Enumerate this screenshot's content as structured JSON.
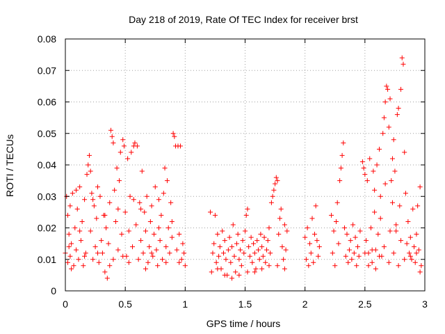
{
  "chart_data": {
    "type": "scatter",
    "title": "Day 218 of 2019, Rate Of TEC Index for receiver brst",
    "xlabel": "GPS time / hours",
    "ylabel": "ROTI / TECUs",
    "xlim": [
      0,
      3
    ],
    "ylim": [
      0,
      0.08
    ],
    "xticks": [
      0,
      0.5,
      1,
      1.5,
      2,
      2.5,
      3
    ],
    "xtick_labels": [
      "0",
      "0.5",
      "1",
      "1.5",
      "2",
      "2.5",
      "3"
    ],
    "yticks": [
      0,
      0.01,
      0.02,
      0.03,
      0.04,
      0.05,
      0.06,
      0.07,
      0.08
    ],
    "ytick_labels": [
      "0",
      "0.01",
      "0.02",
      "0.03",
      "0.04",
      "0.05",
      "0.06",
      "0.07",
      "0.08"
    ],
    "grid": true,
    "marker": "+",
    "marker_color": "#ff0000",
    "series": [
      {
        "name": "ROTI",
        "points": [
          [
            0.0,
            0.012
          ],
          [
            0.01,
            0.03
          ],
          [
            0.02,
            0.024
          ],
          [
            0.02,
            0.009
          ],
          [
            0.03,
            0.018
          ],
          [
            0.04,
            0.027
          ],
          [
            0.04,
            0.011
          ],
          [
            0.05,
            0.015
          ],
          [
            0.06,
            0.031
          ],
          [
            0.07,
            0.008
          ],
          [
            0.08,
            0.02
          ],
          [
            0.09,
            0.013
          ],
          [
            0.1,
            0.026
          ],
          [
            0.11,
            0.01
          ],
          [
            0.12,
            0.033
          ],
          [
            0.13,
            0.016
          ],
          [
            0.14,
            0.022
          ],
          [
            0.15,
            0.008
          ],
          [
            0.16,
            0.029
          ],
          [
            0.17,
            0.012
          ],
          [
            0.18,
            0.037
          ],
          [
            0.19,
            0.04
          ],
          [
            0.2,
            0.043
          ],
          [
            0.21,
            0.038
          ],
          [
            0.21,
            0.019
          ],
          [
            0.22,
            0.031
          ],
          [
            0.23,
            0.01
          ],
          [
            0.24,
            0.027
          ],
          [
            0.25,
            0.014
          ],
          [
            0.26,
            0.023
          ],
          [
            0.27,
            0.033
          ],
          [
            0.28,
            0.009
          ],
          [
            0.29,
            0.03
          ],
          [
            0.3,
            0.016
          ],
          [
            0.31,
            0.012
          ],
          [
            0.32,
            0.024
          ],
          [
            0.33,
            0.006
          ],
          [
            0.34,
            0.02
          ],
          [
            0.35,
            0.004
          ],
          [
            0.36,
            0.015
          ],
          [
            0.37,
            0.028
          ],
          [
            0.38,
            0.051
          ],
          [
            0.39,
            0.049
          ],
          [
            0.4,
            0.047
          ],
          [
            0.4,
            0.01
          ],
          [
            0.41,
            0.032
          ],
          [
            0.42,
            0.022
          ],
          [
            0.43,
            0.039
          ],
          [
            0.44,
            0.013
          ],
          [
            0.45,
            0.035
          ],
          [
            0.46,
            0.044
          ],
          [
            0.47,
            0.018
          ],
          [
            0.48,
            0.048
          ],
          [
            0.49,
            0.046
          ],
          [
            0.5,
            0.025
          ],
          [
            0.51,
            0.011
          ],
          [
            0.52,
            0.042
          ],
          [
            0.53,
            0.019
          ],
          [
            0.54,
            0.03
          ],
          [
            0.55,
            0.044
          ],
          [
            0.56,
            0.014
          ],
          [
            0.57,
            0.046
          ],
          [
            0.58,
            0.047
          ],
          [
            0.59,
            0.021
          ],
          [
            0.6,
            0.046
          ],
          [
            0.61,
            0.01
          ],
          [
            0.62,
            0.028
          ],
          [
            0.63,
            0.016
          ],
          [
            0.64,
            0.038
          ],
          [
            0.65,
            0.012
          ],
          [
            0.66,
            0.025
          ],
          [
            0.67,
            0.019
          ],
          [
            0.68,
            0.03
          ],
          [
            0.69,
            0.009
          ],
          [
            0.7,
            0.014
          ],
          [
            0.71,
            0.022
          ],
          [
            0.72,
            0.027
          ],
          [
            0.73,
            0.011
          ],
          [
            0.74,
            0.018
          ],
          [
            0.75,
            0.033
          ],
          [
            0.76,
            0.013
          ],
          [
            0.77,
            0.008
          ],
          [
            0.78,
            0.029
          ],
          [
            0.79,
            0.016
          ],
          [
            0.8,
            0.024
          ],
          [
            0.81,
            0.01
          ],
          [
            0.82,
            0.031
          ],
          [
            0.83,
            0.039
          ],
          [
            0.84,
            0.014
          ],
          [
            0.85,
            0.035
          ],
          [
            0.86,
            0.02
          ],
          [
            0.87,
            0.012
          ],
          [
            0.88,
            0.028
          ],
          [
            0.89,
            0.017
          ],
          [
            0.9,
            0.05
          ],
          [
            0.91,
            0.049
          ],
          [
            0.92,
            0.046
          ],
          [
            0.93,
            0.013
          ],
          [
            0.94,
            0.046
          ],
          [
            0.95,
            0.018
          ],
          [
            0.96,
            0.046
          ],
          [
            0.97,
            0.01
          ],
          [
            0.98,
            0.015
          ],
          [
            0.99,
            0.012
          ],
          [
            1.0,
            0.008
          ],
          [
            0.03,
            0.014
          ],
          [
            0.05,
            0.007
          ],
          [
            0.09,
            0.032
          ],
          [
            0.12,
            0.019
          ],
          [
            0.16,
            0.011
          ],
          [
            0.23,
            0.029
          ],
          [
            0.27,
            0.012
          ],
          [
            0.33,
            0.024
          ],
          [
            0.37,
            0.008
          ],
          [
            0.44,
            0.026
          ],
          [
            0.48,
            0.011
          ],
          [
            0.53,
            0.009
          ],
          [
            0.57,
            0.029
          ],
          [
            0.63,
            0.026
          ],
          [
            0.67,
            0.007
          ],
          [
            0.72,
            0.012
          ],
          [
            0.78,
            0.02
          ],
          [
            0.84,
            0.009
          ],
          [
            0.89,
            0.022
          ],
          [
            0.95,
            0.009
          ],
          [
            1.21,
            0.025
          ],
          [
            1.22,
            0.006
          ],
          [
            1.23,
            0.012
          ],
          [
            1.24,
            0.015
          ],
          [
            1.25,
            0.024
          ],
          [
            1.26,
            0.009
          ],
          [
            1.27,
            0.018
          ],
          [
            1.28,
            0.011
          ],
          [
            1.29,
            0.014
          ],
          [
            1.3,
            0.007
          ],
          [
            1.31,
            0.019
          ],
          [
            1.32,
            0.012
          ],
          [
            1.33,
            0.016
          ],
          [
            1.34,
            0.01
          ],
          [
            1.35,
            0.005
          ],
          [
            1.36,
            0.013
          ],
          [
            1.37,
            0.017
          ],
          [
            1.38,
            0.009
          ],
          [
            1.39,
            0.014
          ],
          [
            1.4,
            0.021
          ],
          [
            1.41,
            0.011
          ],
          [
            1.42,
            0.006
          ],
          [
            1.43,
            0.015
          ],
          [
            1.44,
            0.018
          ],
          [
            1.45,
            0.01
          ],
          [
            1.46,
            0.013
          ],
          [
            1.47,
            0.008
          ],
          [
            1.48,
            0.016
          ],
          [
            1.49,
            0.012
          ],
          [
            1.5,
            0.019
          ],
          [
            1.51,
            0.024
          ],
          [
            1.52,
            0.026
          ],
          [
            1.53,
            0.014
          ],
          [
            1.54,
            0.011
          ],
          [
            1.55,
            0.017
          ],
          [
            1.56,
            0.009
          ],
          [
            1.57,
            0.015
          ],
          [
            1.58,
            0.012
          ],
          [
            1.59,
            0.007
          ],
          [
            1.6,
            0.016
          ],
          [
            1.61,
            0.013
          ],
          [
            1.62,
            0.01
          ],
          [
            1.63,
            0.018
          ],
          [
            1.64,
            0.014
          ],
          [
            1.65,
            0.011
          ],
          [
            1.66,
            0.017
          ],
          [
            1.67,
            0.009
          ],
          [
            1.68,
            0.013
          ],
          [
            1.69,
            0.016
          ],
          [
            1.7,
            0.02
          ],
          [
            1.71,
            0.012
          ],
          [
            1.72,
            0.028
          ],
          [
            1.73,
            0.03
          ],
          [
            1.74,
            0.032
          ],
          [
            1.75,
            0.034
          ],
          [
            1.76,
            0.036
          ],
          [
            1.77,
            0.035
          ],
          [
            1.78,
            0.018
          ],
          [
            1.79,
            0.023
          ],
          [
            1.8,
            0.026
          ],
          [
            1.81,
            0.014
          ],
          [
            1.82,
            0.01
          ],
          [
            1.83,
            0.021
          ],
          [
            1.84,
            0.013
          ],
          [
            1.85,
            0.019
          ],
          [
            1.27,
            0.007
          ],
          [
            1.33,
            0.005
          ],
          [
            1.39,
            0.004
          ],
          [
            1.45,
            0.005
          ],
          [
            1.52,
            0.006
          ],
          [
            1.58,
            0.006
          ],
          [
            1.64,
            0.007
          ],
          [
            1.7,
            0.008
          ],
          [
            1.77,
            0.008
          ],
          [
            1.83,
            0.007
          ],
          [
            2.0,
            0.017
          ],
          [
            2.01,
            0.01
          ],
          [
            2.02,
            0.02
          ],
          [
            2.03,
            0.008
          ],
          [
            2.04,
            0.015
          ],
          [
            2.05,
            0.012
          ],
          [
            2.06,
            0.023
          ],
          [
            2.07,
            0.009
          ],
          [
            2.08,
            0.018
          ],
          [
            2.09,
            0.027
          ],
          [
            2.1,
            0.016
          ],
          [
            2.11,
            0.011
          ],
          [
            2.12,
            0.014
          ],
          [
            2.22,
            0.024
          ],
          [
            2.23,
            0.012
          ],
          [
            2.24,
            0.019
          ],
          [
            2.25,
            0.008
          ],
          [
            2.26,
            0.022
          ],
          [
            2.27,
            0.028
          ],
          [
            2.28,
            0.015
          ],
          [
            2.29,
            0.035
          ],
          [
            2.3,
            0.039
          ],
          [
            2.31,
            0.043
          ],
          [
            2.32,
            0.047
          ],
          [
            2.33,
            0.02
          ],
          [
            2.34,
            0.011
          ],
          [
            2.35,
            0.018
          ],
          [
            2.36,
            0.009
          ],
          [
            2.37,
            0.013
          ],
          [
            2.38,
            0.016
          ],
          [
            2.39,
            0.01
          ],
          [
            2.4,
            0.021
          ],
          [
            2.41,
            0.012
          ],
          [
            2.42,
            0.017
          ],
          [
            2.43,
            0.008
          ],
          [
            2.44,
            0.014
          ],
          [
            2.45,
            0.011
          ],
          [
            2.46,
            0.019
          ],
          [
            2.48,
            0.041
          ],
          [
            2.49,
            0.039
          ],
          [
            2.5,
            0.037
          ],
          [
            2.51,
            0.016
          ],
          [
            2.52,
            0.035
          ],
          [
            2.53,
            0.012
          ],
          [
            2.54,
            0.042
          ],
          [
            2.55,
            0.02
          ],
          [
            2.56,
            0.009
          ],
          [
            2.57,
            0.038
          ],
          [
            2.58,
            0.025
          ],
          [
            2.59,
            0.013
          ],
          [
            2.6,
            0.04
          ],
          [
            2.61,
            0.018
          ],
          [
            2.62,
            0.045
          ],
          [
            2.63,
            0.03
          ],
          [
            2.64,
            0.011
          ],
          [
            2.65,
            0.05
          ],
          [
            2.66,
            0.055
          ],
          [
            2.67,
            0.06
          ],
          [
            2.68,
            0.065
          ],
          [
            2.69,
            0.064
          ],
          [
            2.7,
            0.052
          ],
          [
            2.71,
            0.061
          ],
          [
            2.72,
            0.035
          ],
          [
            2.73,
            0.042
          ],
          [
            2.74,
            0.048
          ],
          [
            2.75,
            0.038
          ],
          [
            2.76,
            0.019
          ],
          [
            2.77,
            0.056
          ],
          [
            2.78,
            0.058
          ],
          [
            2.79,
            0.027
          ],
          [
            2.8,
            0.064
          ],
          [
            2.81,
            0.074
          ],
          [
            2.82,
            0.072
          ],
          [
            2.83,
            0.044
          ],
          [
            2.84,
            0.031
          ],
          [
            2.85,
            0.015
          ],
          [
            2.86,
            0.022
          ],
          [
            2.87,
            0.012
          ],
          [
            2.88,
            0.017
          ],
          [
            2.89,
            0.01
          ],
          [
            2.9,
            0.026
          ],
          [
            2.91,
            0.014
          ],
          [
            2.92,
            0.009
          ],
          [
            2.93,
            0.018
          ],
          [
            2.94,
            0.027
          ],
          [
            2.95,
            0.013
          ],
          [
            2.96,
            0.033
          ],
          [
            2.97,
            0.008
          ],
          [
            2.5,
            0.012
          ],
          [
            2.53,
            0.008
          ],
          [
            2.56,
            0.013
          ],
          [
            2.59,
            0.007
          ],
          [
            2.62,
            0.011
          ],
          [
            2.66,
            0.014
          ],
          [
            2.7,
            0.009
          ],
          [
            2.74,
            0.012
          ],
          [
            2.78,
            0.008
          ],
          [
            2.83,
            0.01
          ],
          [
            2.88,
            0.011
          ],
          [
            2.93,
            0.012
          ],
          [
            2.96,
            0.006
          ],
          [
            2.71,
            0.019
          ],
          [
            2.76,
            0.021
          ],
          [
            2.8,
            0.016
          ],
          [
            2.67,
            0.034
          ],
          [
            2.73,
            0.028
          ],
          [
            2.58,
            0.032
          ],
          [
            2.63,
            0.023
          ]
        ]
      }
    ]
  }
}
